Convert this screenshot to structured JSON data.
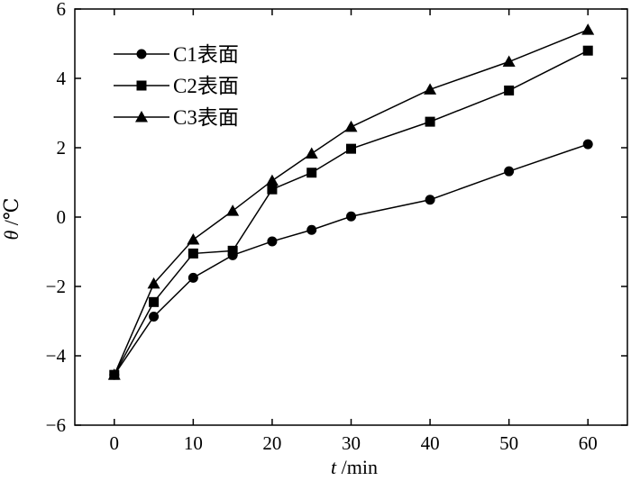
{
  "chart_data": {
    "type": "line",
    "x": [
      0,
      5,
      10,
      15,
      20,
      25,
      30,
      40,
      50,
      60
    ],
    "xlim": [
      -5,
      65
    ],
    "ylim": [
      -6,
      6
    ],
    "xticks": [
      0,
      10,
      20,
      30,
      40,
      50,
      60
    ],
    "yticks": [
      -6,
      -4,
      -2,
      0,
      2,
      4,
      6
    ],
    "xtick_labels": [
      "0",
      "10",
      "20",
      "30",
      "40",
      "50",
      "60"
    ],
    "ytick_labels": [
      "−6",
      "−4",
      "−2",
      "0",
      "2",
      "4",
      "6"
    ],
    "xlabel_var": "t",
    "xlabel_unit": " /min",
    "ylabel_var": "θ",
    "ylabel_unit": " /℃",
    "legend_position": "top-left",
    "grid": false,
    "series": [
      {
        "name": "C1表面",
        "marker": "circle",
        "values": [
          -4.55,
          -2.87,
          -1.75,
          -1.1,
          -0.7,
          -0.37,
          0.02,
          0.5,
          1.32,
          2.1
        ]
      },
      {
        "name": "C2表面",
        "marker": "square",
        "values": [
          -4.55,
          -2.45,
          -1.05,
          -0.97,
          0.8,
          1.28,
          1.97,
          2.75,
          3.65,
          4.8
        ]
      },
      {
        "name": "C3表面",
        "marker": "triangle",
        "values": [
          -4.55,
          -1.92,
          -0.65,
          0.18,
          1.05,
          1.83,
          2.6,
          3.68,
          4.48,
          5.4
        ]
      }
    ]
  }
}
